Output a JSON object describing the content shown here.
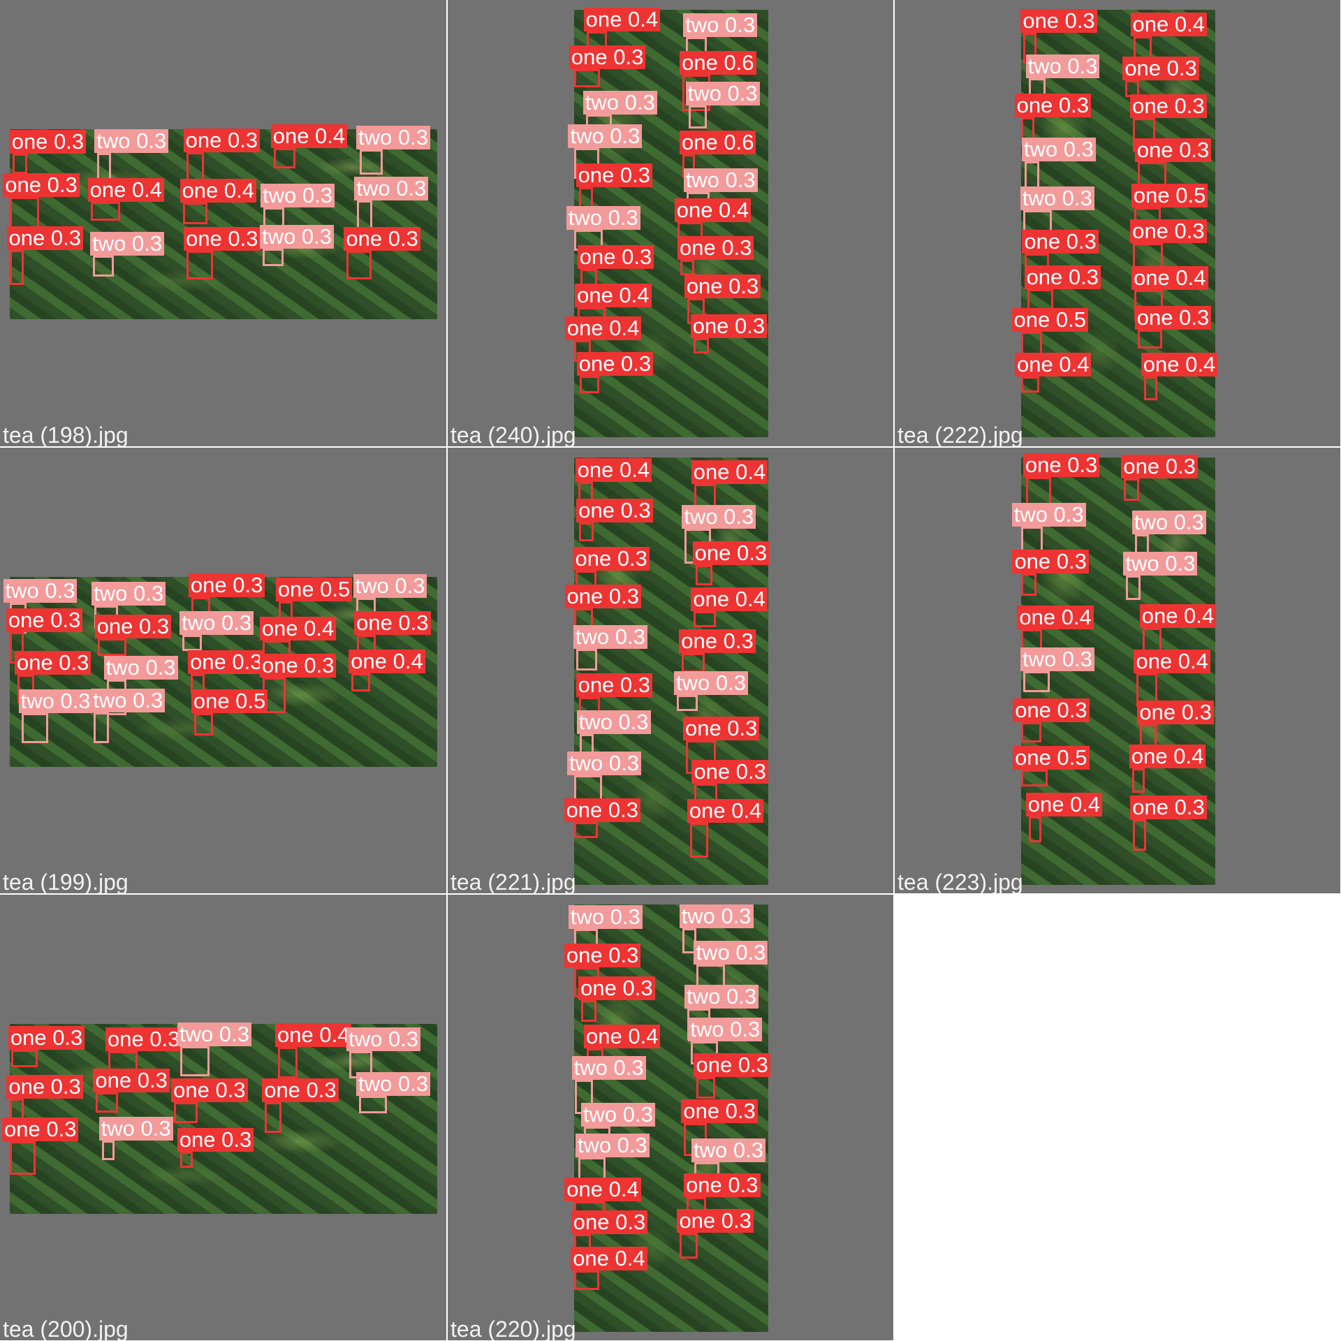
{
  "colors": {
    "background": "#727272",
    "separator": "#ffffff",
    "one": "#ee3333",
    "two": "#f39a9a",
    "label_text": "#ffffff"
  },
  "classes": [
    "one",
    "two"
  ],
  "images": [
    {
      "filename": "tea (198).jpg",
      "detections": [
        {
          "cls": "one",
          "score": "0.3"
        },
        {
          "cls": "two",
          "score": "0.3"
        },
        {
          "cls": "one",
          "score": "0.3"
        },
        {
          "cls": "one",
          "score": "0.4"
        },
        {
          "cls": "two",
          "score": "0.3"
        },
        {
          "cls": "one",
          "score": "0.3"
        },
        {
          "cls": "one",
          "score": "0.4"
        },
        {
          "cls": "one",
          "score": "0.4"
        },
        {
          "cls": "two",
          "score": "0.3"
        },
        {
          "cls": "two",
          "score": "0.3"
        },
        {
          "cls": "one",
          "score": "0.3"
        },
        {
          "cls": "two",
          "score": "0.3"
        },
        {
          "cls": "one",
          "score": "0.3"
        },
        {
          "cls": "two",
          "score": "0.3"
        },
        {
          "cls": "one",
          "score": "0.3"
        }
      ]
    },
    {
      "filename": "tea (240).jpg",
      "detections": [
        {
          "cls": "one",
          "score": "0.4"
        },
        {
          "cls": "two",
          "score": "0.3"
        },
        {
          "cls": "one",
          "score": "0.3"
        },
        {
          "cls": "one",
          "score": "0.6"
        },
        {
          "cls": "two",
          "score": "0.3"
        },
        {
          "cls": "two",
          "score": "0.3"
        },
        {
          "cls": "two",
          "score": "0.3"
        },
        {
          "cls": "one",
          "score": "0.6"
        },
        {
          "cls": "one",
          "score": "0.3"
        },
        {
          "cls": "two",
          "score": "0.3"
        },
        {
          "cls": "two",
          "score": "0.3"
        },
        {
          "cls": "one",
          "score": "0.4"
        },
        {
          "cls": "one",
          "score": "0.3"
        },
        {
          "cls": "one",
          "score": "0.3"
        },
        {
          "cls": "one",
          "score": "0.4"
        },
        {
          "cls": "one",
          "score": "0.3"
        },
        {
          "cls": "one",
          "score": "0.4"
        },
        {
          "cls": "one",
          "score": "0.3"
        },
        {
          "cls": "one",
          "score": "0.3"
        }
      ]
    },
    {
      "filename": "tea (222).jpg",
      "detections": [
        {
          "cls": "one",
          "score": "0.3"
        },
        {
          "cls": "one",
          "score": "0.4"
        },
        {
          "cls": "two",
          "score": "0.3"
        },
        {
          "cls": "one",
          "score": "0.3"
        },
        {
          "cls": "one",
          "score": "0.3"
        },
        {
          "cls": "one",
          "score": "0.3"
        },
        {
          "cls": "two",
          "score": "0.3"
        },
        {
          "cls": "one",
          "score": "0.3"
        },
        {
          "cls": "two",
          "score": "0.3"
        },
        {
          "cls": "one",
          "score": "0.5"
        },
        {
          "cls": "one",
          "score": "0.3"
        },
        {
          "cls": "one",
          "score": "0.3"
        },
        {
          "cls": "one",
          "score": "0.3"
        },
        {
          "cls": "one",
          "score": "0.4"
        },
        {
          "cls": "one",
          "score": "0.5"
        },
        {
          "cls": "one",
          "score": "0.3"
        },
        {
          "cls": "one",
          "score": "0.4"
        },
        {
          "cls": "one",
          "score": "0.4"
        }
      ]
    },
    {
      "filename": "tea (199).jpg",
      "detections": [
        {
          "cls": "two",
          "score": "0.3"
        },
        {
          "cls": "two",
          "score": "0.3"
        },
        {
          "cls": "one",
          "score": "0.3"
        },
        {
          "cls": "one",
          "score": "0.5"
        },
        {
          "cls": "two",
          "score": "0.3"
        },
        {
          "cls": "one",
          "score": "0.3"
        },
        {
          "cls": "one",
          "score": "0.3"
        },
        {
          "cls": "two",
          "score": "0.3"
        },
        {
          "cls": "one",
          "score": "0.4"
        },
        {
          "cls": "one",
          "score": "0.3"
        },
        {
          "cls": "one",
          "score": "0.3"
        },
        {
          "cls": "two",
          "score": "0.3"
        },
        {
          "cls": "one",
          "score": "0.3"
        },
        {
          "cls": "one",
          "score": "0.3"
        },
        {
          "cls": "one",
          "score": "0.4"
        },
        {
          "cls": "two",
          "score": "0.3"
        },
        {
          "cls": "two",
          "score": "0.3"
        },
        {
          "cls": "one",
          "score": "0.5"
        }
      ]
    },
    {
      "filename": "tea (221).jpg",
      "detections": [
        {
          "cls": "one",
          "score": "0.4"
        },
        {
          "cls": "one",
          "score": "0.4"
        },
        {
          "cls": "one",
          "score": "0.3"
        },
        {
          "cls": "two",
          "score": "0.3"
        },
        {
          "cls": "one",
          "score": "0.3"
        },
        {
          "cls": "one",
          "score": "0.3"
        },
        {
          "cls": "one",
          "score": "0.3"
        },
        {
          "cls": "one",
          "score": "0.4"
        },
        {
          "cls": "two",
          "score": "0.3"
        },
        {
          "cls": "one",
          "score": "0.3"
        },
        {
          "cls": "one",
          "score": "0.3"
        },
        {
          "cls": "two",
          "score": "0.3"
        },
        {
          "cls": "two",
          "score": "0.3"
        },
        {
          "cls": "one",
          "score": "0.3"
        },
        {
          "cls": "two",
          "score": "0.3"
        },
        {
          "cls": "one",
          "score": "0.3"
        },
        {
          "cls": "one",
          "score": "0.3"
        },
        {
          "cls": "one",
          "score": "0.4"
        }
      ]
    },
    {
      "filename": "tea (223).jpg",
      "detections": [
        {
          "cls": "one",
          "score": "0.3"
        },
        {
          "cls": "one",
          "score": "0.3"
        },
        {
          "cls": "two",
          "score": "0.3"
        },
        {
          "cls": "two",
          "score": "0.3"
        },
        {
          "cls": "one",
          "score": "0.3"
        },
        {
          "cls": "two",
          "score": "0.3"
        },
        {
          "cls": "one",
          "score": "0.4"
        },
        {
          "cls": "one",
          "score": "0.4"
        },
        {
          "cls": "two",
          "score": "0.3"
        },
        {
          "cls": "one",
          "score": "0.4"
        },
        {
          "cls": "one",
          "score": "0.3"
        },
        {
          "cls": "one",
          "score": "0.3"
        },
        {
          "cls": "one",
          "score": "0.5"
        },
        {
          "cls": "one",
          "score": "0.4"
        },
        {
          "cls": "one",
          "score": "0.4"
        },
        {
          "cls": "one",
          "score": "0.3"
        }
      ]
    },
    {
      "filename": "tea (200).jpg",
      "detections": [
        {
          "cls": "one",
          "score": "0.3"
        },
        {
          "cls": "one",
          "score": "0.3"
        },
        {
          "cls": "two",
          "score": "0.3"
        },
        {
          "cls": "one",
          "score": "0.4"
        },
        {
          "cls": "two",
          "score": "0.3"
        },
        {
          "cls": "one",
          "score": "0.3"
        },
        {
          "cls": "one",
          "score": "0.3"
        },
        {
          "cls": "one",
          "score": "0.3"
        },
        {
          "cls": "one",
          "score": "0.3"
        },
        {
          "cls": "two",
          "score": "0.3"
        },
        {
          "cls": "one",
          "score": "0.3"
        },
        {
          "cls": "two",
          "score": "0.3"
        },
        {
          "cls": "one",
          "score": "0.3"
        }
      ]
    },
    {
      "filename": "tea (220).jpg",
      "detections": [
        {
          "cls": "two",
          "score": "0.3"
        },
        {
          "cls": "two",
          "score": "0.3"
        },
        {
          "cls": "one",
          "score": "0.3"
        },
        {
          "cls": "two",
          "score": "0.3"
        },
        {
          "cls": "one",
          "score": "0.3"
        },
        {
          "cls": "two",
          "score": "0.3"
        },
        {
          "cls": "one",
          "score": "0.4"
        },
        {
          "cls": "two",
          "score": "0.3"
        },
        {
          "cls": "two",
          "score": "0.3"
        },
        {
          "cls": "one",
          "score": "0.3"
        },
        {
          "cls": "two",
          "score": "0.3"
        },
        {
          "cls": "one",
          "score": "0.3"
        },
        {
          "cls": "two",
          "score": "0.3"
        },
        {
          "cls": "two",
          "score": "0.3"
        },
        {
          "cls": "one",
          "score": "0.4"
        },
        {
          "cls": "one",
          "score": "0.3"
        },
        {
          "cls": "one",
          "score": "0.3"
        },
        {
          "cls": "one",
          "score": "0.3"
        },
        {
          "cls": "one",
          "score": "0.4"
        }
      ]
    }
  ]
}
